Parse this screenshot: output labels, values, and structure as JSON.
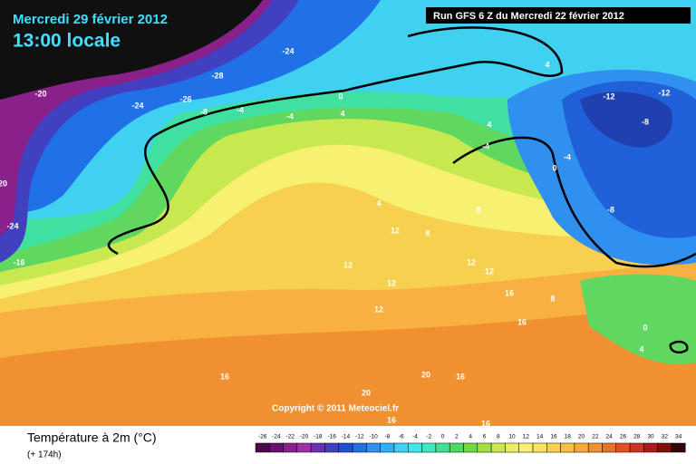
{
  "header": {
    "title": "Mercredi 29 février 2012",
    "subtitle": "13:00 locale",
    "run": "Run GFS 6 Z du Mercredi 22 février 2012"
  },
  "copyright": "Copyright © 2011 Meteociel.fr",
  "legend": {
    "title": "Température à 2m (°C)",
    "lead": "(+ 174h)",
    "ticks": [
      -26,
      -24,
      -22,
      -20,
      -18,
      -16,
      -14,
      -12,
      -10,
      -8,
      -6,
      -4,
      -2,
      0,
      2,
      4,
      6,
      8,
      10,
      12,
      14,
      16,
      18,
      20,
      22,
      24,
      26,
      28,
      30,
      32,
      34
    ],
    "colors": [
      "#4a0a4a",
      "#6a1070",
      "#8a208a",
      "#a030a8",
      "#7030b0",
      "#4040c0",
      "#2050d0",
      "#2070e8",
      "#3090f0",
      "#30b0f8",
      "#40d0f8",
      "#40e8e8",
      "#40e8c0",
      "#40e090",
      "#50d860",
      "#70d840",
      "#a0e040",
      "#c8e850",
      "#e8f060",
      "#f8f070",
      "#f8e060",
      "#f8d050",
      "#f8c040",
      "#f8a838",
      "#f09030",
      "#e87028",
      "#e05020",
      "#d03020",
      "#b01818",
      "#801010",
      "#300808"
    ]
  },
  "contour_labels": [
    -24,
    -28,
    -20,
    -24,
    -26,
    -8,
    -4,
    0,
    -4,
    4,
    4,
    -12,
    -12,
    -8,
    4,
    -4,
    0,
    -4,
    -8,
    4,
    8,
    12,
    8,
    12,
    12,
    12,
    12,
    16,
    12,
    16,
    8,
    0,
    4,
    16,
    20,
    20,
    16,
    16,
    16,
    -16,
    -24,
    20
  ]
}
